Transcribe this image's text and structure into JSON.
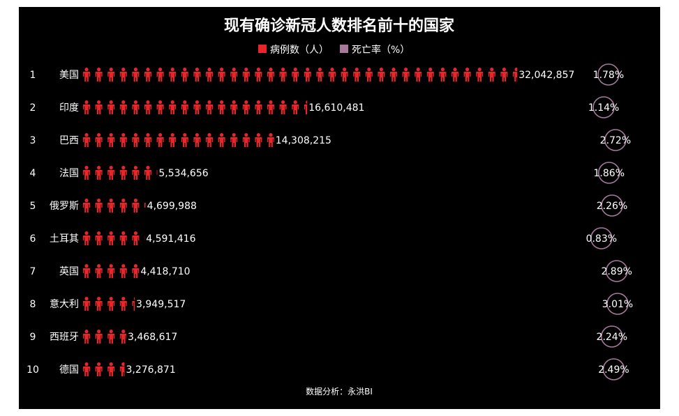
{
  "chart_data": {
    "type": "bar",
    "title": "现有确诊新冠人数排名前十的国家",
    "legend": {
      "placement": "top-center",
      "items": [
        {
          "label": "病例数（人）",
          "color": "#e8262a"
        },
        {
          "label": "死亡率（%）",
          "color": "#a77a9c"
        }
      ]
    },
    "ranks": [
      "1",
      "2",
      "3",
      "4",
      "5",
      "6",
      "7",
      "8",
      "9",
      "10"
    ],
    "categories": [
      "美国",
      "印度",
      "巴西",
      "法国",
      "俄罗斯",
      "土耳其",
      "英国",
      "意大利",
      "西班牙",
      "德国"
    ],
    "series": [
      {
        "name": "病例数（人）",
        "values": [
          32042857,
          16610481,
          14308215,
          5534656,
          4699988,
          4591416,
          4418710,
          3949517,
          3468617,
          3276871
        ],
        "labels": [
          "32,042,857",
          "16,610,481",
          "14,308,215",
          "5,534,656",
          "4,699,988",
          "4,591,416",
          "4,418,710",
          "3,949,517",
          "3,468,617",
          "3,276,871"
        ]
      },
      {
        "name": "死亡率（%）",
        "values": [
          1.78,
          1.14,
          2.72,
          1.86,
          2.26,
          0.83,
          2.89,
          3.01,
          2.24,
          2.49
        ],
        "labels": [
          "1.78%",
          "1.14%",
          "2.72%",
          "1.86%",
          "2.26%",
          "0.83%",
          "2.89%",
          "3.01%",
          "2.24%",
          "2.49%"
        ]
      }
    ],
    "unit_per_icon": 900000,
    "footer": "数据分析：永洪BI"
  }
}
